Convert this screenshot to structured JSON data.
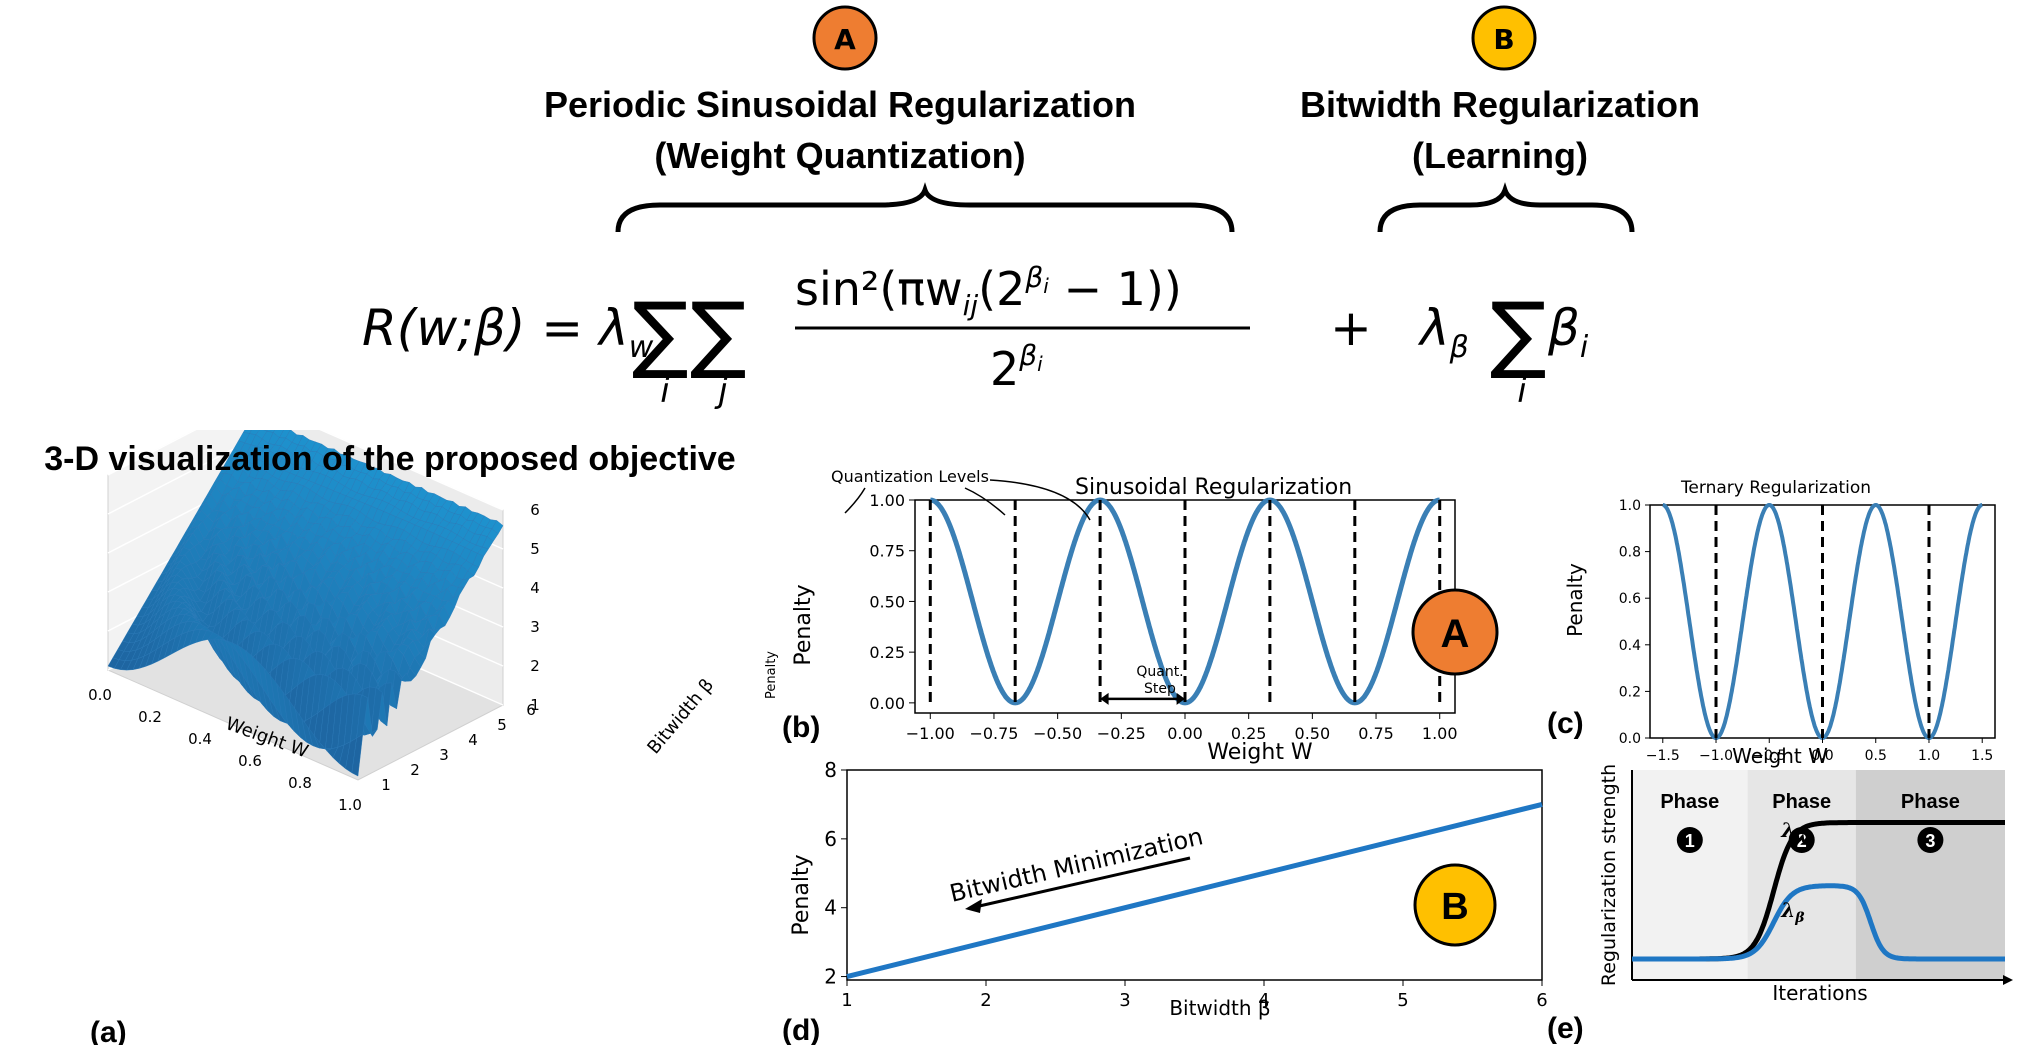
{
  "header": {
    "badge_a": "A",
    "badge_b": "B",
    "title_a_line1": "Periodic Sinusoidal Regularization",
    "title_a_line2": "(Weight Quantization)",
    "title_b_line1": "Bitwidth Regularization",
    "title_b_line2": "(Learning)",
    "equation": {
      "lhs": "R(w;β) = λ",
      "lhs_sub": "w",
      "sum_i": "i",
      "sum_j": "j",
      "numerator": "sin²(πw",
      "numerator_sub": "ij",
      "numerator_rest": "(2",
      "numerator_sup": "β",
      "numerator_sup_sub": "i",
      "numerator_tail": " − 1))",
      "denominator": "2",
      "denominator_sup": "β",
      "denominator_sup_sub": "i",
      "plus": "+",
      "rhs_lambda": "λ",
      "rhs_lambda_sub": "β",
      "rhs_beta": "β",
      "rhs_beta_sub": "i",
      "rhs_sum_i": "i"
    }
  },
  "colors": {
    "badge_a": "#ee7d31",
    "badge_b": "#ffc000",
    "curve": "#3a7fb5",
    "line_d": "#1f77c4",
    "surface": "#2a78b8",
    "phase1_bg": "#f2f2f2",
    "phase2_bg": "#e6e6e6",
    "phase3_bg": "#cfcfcf"
  },
  "chart_data": [
    {
      "id": "a",
      "type": "surface3d",
      "panel_label": "(a)",
      "title": "3-D visualization of the proposed objective",
      "xlabel": "Weight W",
      "ylabel": "Bitwidth β",
      "xticks": [
        "0.0",
        "0.2",
        "0.4",
        "0.6",
        "0.8",
        "1.0"
      ],
      "yticks": [
        "1",
        "2",
        "3",
        "4",
        "5",
        "6"
      ],
      "zticks": [
        "1",
        "2",
        "3",
        "4",
        "5",
        "6"
      ],
      "xlim": [
        0,
        1
      ],
      "ylim": [
        1,
        6
      ],
      "zlim": [
        1,
        6
      ]
    },
    {
      "id": "b",
      "type": "line",
      "panel_label": "(b)",
      "title": "Sinusoidal Regularization",
      "xlabel": "Weight W",
      "ylabel": "Penalty",
      "ylabel_small": "Penalty",
      "xlim": [
        -1.0,
        1.0
      ],
      "ylim": [
        0,
        1.0
      ],
      "xticks": [
        "−1.00",
        "−0.75",
        "−0.50",
        "−0.25",
        "0.00",
        "0.25",
        "0.50",
        "0.75",
        "1.00"
      ],
      "yticks": [
        "0.00",
        "0.25",
        "0.50",
        "0.75",
        "1.00"
      ],
      "series": [
        {
          "function": "sin^2(3πw/2)"
        }
      ],
      "quantization_levels": [
        -1,
        -0.6667,
        -0.3333,
        0,
        0.3333,
        0.6667,
        1
      ],
      "annotations": [
        "Quantization Levels",
        "Quant.",
        "Step"
      ],
      "badge": "A"
    },
    {
      "id": "c",
      "type": "line",
      "panel_label": "(c)",
      "title": "Ternary Regularization",
      "xlabel": "Weight W",
      "ylabel": "Penalty",
      "xlim": [
        -1.6,
        1.6
      ],
      "ylim": [
        0,
        1.0
      ],
      "xticks": [
        "−1.5",
        "−1.0",
        "−0.5",
        "0.0",
        "0.5",
        "1.0",
        "1.5"
      ],
      "yticks": [
        "0.0",
        "0.2",
        "0.4",
        "0.6",
        "0.8",
        "1.0"
      ],
      "series": [
        {
          "function": "sin^2(πw)"
        }
      ],
      "quantization_levels": [
        -1,
        0,
        1
      ]
    },
    {
      "id": "d",
      "type": "line",
      "panel_label": "(d)",
      "xlabel": "Bitwidth β",
      "ylabel": "Penalty",
      "xlim": [
        1,
        6
      ],
      "ylim": [
        2,
        8
      ],
      "xticks": [
        "1",
        "2",
        "3",
        "4",
        "5",
        "6"
      ],
      "yticks": [
        "2",
        "4",
        "6",
        "8"
      ],
      "series": [
        {
          "x": [
            1,
            6
          ],
          "y": [
            2,
            7
          ]
        }
      ],
      "annotation": "Bitwidth Minimization",
      "badge": "B"
    },
    {
      "id": "e",
      "type": "line",
      "panel_label": "(e)",
      "xlabel": "Iterations",
      "ylabel": "Regularization strength",
      "phases": [
        {
          "label": "Phase",
          "num": "1"
        },
        {
          "label": "Phase",
          "num": "2"
        },
        {
          "label": "Phase",
          "num": "3"
        }
      ],
      "series": [
        {
          "name": "λw",
          "label": "λ",
          "label_sub": "w",
          "levels": [
            0.1,
            0.75,
            0.75
          ]
        },
        {
          "name": "λβ",
          "label": "λ",
          "label_sub": "β",
          "levels": [
            0.1,
            0.45,
            0.1
          ]
        }
      ]
    }
  ]
}
